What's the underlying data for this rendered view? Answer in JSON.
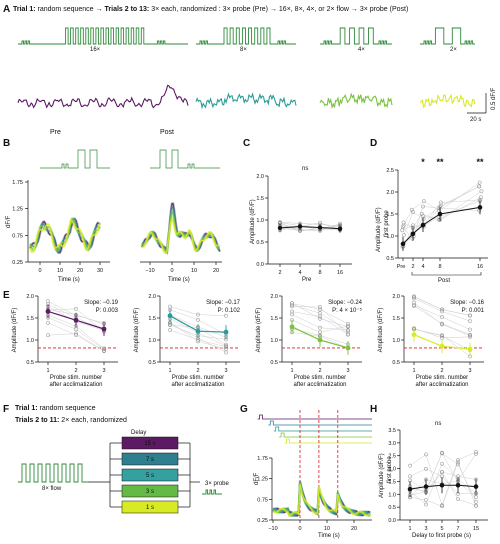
{
  "colors": {
    "c16": "#5b1a63",
    "c8": "#2b9a9a",
    "c4": "#7cc242",
    "c2": "#d7ea24",
    "flow": "#2e8b3a",
    "ref": "#e31a1c",
    "grey": "#9a9a9a"
  },
  "panelA": {
    "letter": "A",
    "header": {
      "t1": "Trial 1:",
      "t1b": " random sequence",
      "t2": "Trials 2 to 13:",
      "t2b": " 3× each, randomized :",
      "p1": "3× probe (Pre)",
      "p2": "16×, 8×, 4×, or 2× flow",
      "p3": "3× probe (Post)"
    },
    "labels": [
      "16×",
      "8×",
      "4×",
      "2×"
    ],
    "scale_y": "0.5 dF/F",
    "scale_x": "20 s"
  },
  "panelB": {
    "letter": "B",
    "pre": "Pre",
    "post": "Post",
    "ylabel": "dF/F",
    "xlabel": "Time (s)",
    "yticks": [
      "1.75",
      "1.25",
      "0.75",
      "0.25"
    ],
    "xticks_pre": [
      "0",
      "10",
      "20",
      "30"
    ],
    "xticks_post": [
      "−10",
      "0",
      "10",
      "20"
    ]
  },
  "panelC": {
    "letter": "C",
    "ylabel": "Amplitude (dF/F)",
    "xlabel": "Pre",
    "ns": "ns",
    "yticks": [
      "2.0",
      "1.5",
      "1.0",
      "0.5",
      "0.0"
    ],
    "xticks": [
      "2",
      "4",
      "8",
      "16"
    ]
  },
  "panelD": {
    "letter": "D",
    "ylabel1": "Amplitude (dF/F)",
    "ylabel2": "first probe",
    "yticks": [
      "2.5",
      "2.0",
      "1.5",
      "1.0",
      "0.5"
    ],
    "xticks": [
      "Pre",
      "2",
      "4",
      "8",
      "16"
    ],
    "xgroup": "Post",
    "stars": [
      "*",
      "**",
      "**"
    ]
  },
  "panelE": {
    "letter": "E",
    "ylabel": "Amplitude (dF/F)",
    "yticks": [
      "2.0",
      "1.5",
      "1.0",
      "0.5"
    ],
    "xticks": [
      "1",
      "2",
      "3"
    ],
    "xlabel1": "Probe stim. number",
    "xlabel2": "after acclimatization",
    "slopes": [
      {
        "slope": "Slope: −0.19",
        "p": "P: 0.003"
      },
      {
        "slope": "Slope: −0.17",
        "p": "P: 0.102"
      },
      {
        "slope": "Slope: −0.24",
        "p": "P: 4 × 10⁻⁵"
      },
      {
        "slope": "Slope: −0.16",
        "p": "P: 0.001"
      }
    ]
  },
  "panelF": {
    "letter": "F",
    "t1": "Trial 1:",
    "t1b": " random sequence",
    "t2": "Trials 2 to 11:",
    "t2b": " 2× each, randomized",
    "delay": "Delay",
    "flow": "8× flow",
    "probe": "3× probe",
    "delays": [
      "15 s",
      "7 s",
      "5 s",
      "3 s",
      "1 s"
    ]
  },
  "panelG": {
    "letter": "G",
    "ylabel": "dF/F",
    "xlabel": "Time (s)",
    "yticks": [
      "1.75",
      "1.25",
      "0.75",
      "0.25"
    ],
    "xticks": [
      "−10",
      "0",
      "10",
      "20"
    ]
  },
  "panelH": {
    "letter": "H",
    "ylabel1": "Amplitude (dF/F)",
    "ylabel2": "first probe",
    "ns": "ns",
    "yticks": [
      "3.5",
      "3.0",
      "2.5",
      "2.0",
      "1.5",
      "1.0",
      "0.5",
      "0.0"
    ],
    "xticks": [
      "1",
      "3",
      "5",
      "7",
      "15"
    ],
    "xlabel": "Delay to first probe (s)"
  },
  "chart_data": [
    {
      "type": "line",
      "panel": "C",
      "xlabel": "Pre",
      "ylabel": "Amplitude (dF/F)",
      "categories": [
        "2",
        "4",
        "8",
        "16"
      ],
      "series": [
        {
          "values": [
            0.82,
            0.85,
            0.83,
            0.8
          ]
        }
      ],
      "ylim": [
        0,
        2
      ]
    },
    {
      "type": "line",
      "panel": "D",
      "ylabel": "Amplitude (dF/F) first probe",
      "categories": [
        "Pre",
        "2",
        "4",
        "8",
        "16"
      ],
      "series": [
        {
          "values": [
            0.82,
            1.05,
            1.25,
            1.5,
            1.65
          ]
        }
      ],
      "ylim": [
        0.5,
        2.5
      ]
    },
    {
      "type": "line",
      "panel": "E",
      "xlabel": "Probe stim. number after acclimatization",
      "ylabel": "Amplitude (dF/F)",
      "categories": [
        "1",
        "2",
        "3"
      ],
      "series": [
        {
          "name": "16×",
          "values": [
            1.65,
            1.45,
            1.25
          ]
        },
        {
          "name": "8×",
          "values": [
            1.55,
            1.2,
            1.18
          ]
        },
        {
          "name": "4×",
          "values": [
            1.3,
            1.0,
            0.82
          ]
        },
        {
          "name": "2×",
          "values": [
            1.12,
            0.86,
            0.79
          ]
        }
      ],
      "ylim": [
        0.5,
        2.0
      ]
    },
    {
      "type": "line",
      "panel": "H",
      "xlabel": "Delay to first probe (s)",
      "ylabel": "Amplitude (dF/F) first probe",
      "categories": [
        "1",
        "3",
        "5",
        "7",
        "15"
      ],
      "series": [
        {
          "values": [
            1.2,
            1.3,
            1.35,
            1.35,
            1.3
          ]
        }
      ],
      "ylim": [
        0,
        3.5
      ]
    }
  ]
}
